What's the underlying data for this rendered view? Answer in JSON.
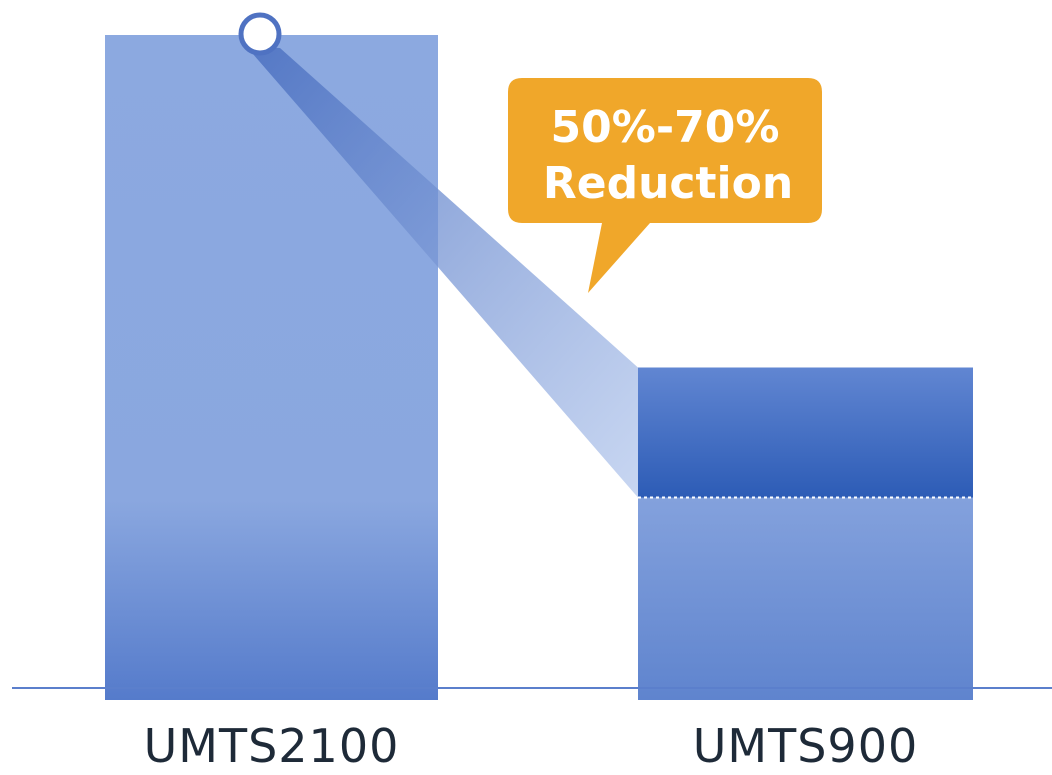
{
  "chart_data": {
    "type": "bar",
    "categories": [
      "UMTS2100",
      "UMTS900"
    ],
    "values": [
      100,
      50
    ],
    "reduction_range": [
      50,
      70
    ],
    "annotation": {
      "lines": [
        "50%-70%",
        "Reduction"
      ]
    },
    "colors": {
      "bar": "#8aa8e0",
      "bar_dark": "#5b7fcc",
      "band_dark": "#2f5fb8",
      "axis": "#5b7fcc",
      "callout": "#f0a72a",
      "marker_stroke": "#4f72c2"
    },
    "grid": false,
    "legend": "none"
  }
}
